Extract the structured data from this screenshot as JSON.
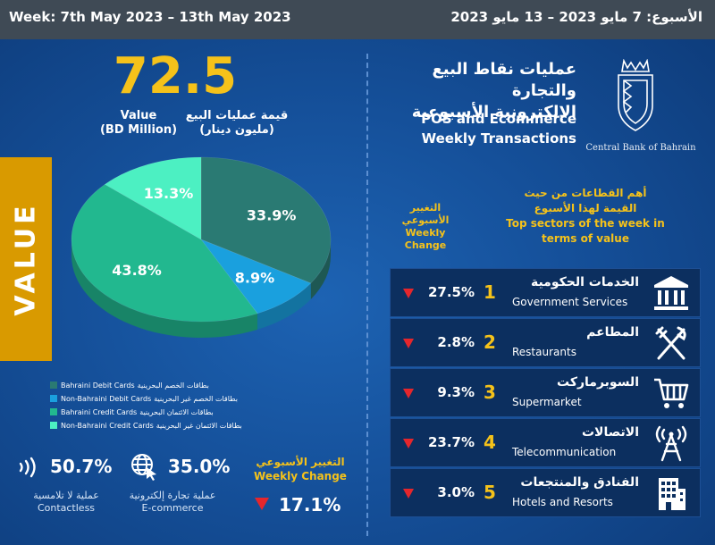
{
  "header": {
    "week_en": "Week: 7th May 2023 – 13th May 2023",
    "week_ar": "الأسبوع: 7 مايو 2023 – 13 مايو 2023"
  },
  "title": {
    "ar_line1": "عمليات نقاط البيع والتجارة",
    "ar_line2": "الإلكترونية الأسبوعية",
    "en_line1": "POS and Ecommerce",
    "en_line2": "Weekly Transactions",
    "logo_text": "Central Bank of Bahrain"
  },
  "value_tab": "VALUE",
  "total": {
    "value": "72.5",
    "label_en_1": "Value",
    "label_en_2": "(BD Million)",
    "label_ar_1": "قيمة عمليات البيع",
    "label_ar_2": "(مليون دينار)"
  },
  "chart_data": {
    "type": "pie",
    "series": [
      {
        "name": "Bahraini Debit Cards",
        "name_ar": "بطاقات الخصم البحرينية",
        "value": 33.9,
        "label": "33.9%",
        "color": "#2a7a73"
      },
      {
        "name": "Non-Bahraini Debit Cards",
        "name_ar": "بطاقات الخصم غير البحرينية",
        "value": 8.9,
        "label": "8.9%",
        "color": "#1aa0de"
      },
      {
        "name": "Bahraini Credit Cards",
        "name_ar": "بطاقات الائتمان البحرينية",
        "value": 43.8,
        "label": "43.8%",
        "color": "#22b88f"
      },
      {
        "name": "Non-Bahraini Credit Cards",
        "name_ar": "بطاقات الائتمان غير البحرينية",
        "value": 13.3,
        "label": "13.3%",
        "color": "#4cf0c2"
      }
    ]
  },
  "kpis": {
    "contactless": {
      "value": "50.7%",
      "caption_ar": "عملية لا تلامسية",
      "caption_en": "Contactless",
      "icon": "contactless-icon"
    },
    "ecommerce": {
      "value": "35.0%",
      "caption_ar": "عملية تجارة إلكترونية",
      "caption_en": "E-commerce",
      "icon": "globe-cursor-icon"
    },
    "weekly_change": {
      "title_ar": "التغيير الأسبوعي",
      "title_en": "Weekly Change",
      "value": "17.1%",
      "direction": "down"
    }
  },
  "sectors": {
    "weekly_change_header": [
      "التغيير",
      "الأسبوعي",
      "Weekly",
      "Change"
    ],
    "top_header": [
      "أهم القطاعات من حيث",
      "القيمة لهذا الأسبوع",
      "Top sectors of the week in",
      "terms of value"
    ],
    "rows": [
      {
        "rank": "1",
        "change": "27.5%",
        "ar": "الخدمات الحكومية",
        "en": "Government Services",
        "icon": "government-building-icon"
      },
      {
        "rank": "2",
        "change": "2.8%",
        "ar": "المطاعم",
        "en": "Restaurants",
        "icon": "fork-knife-icon"
      },
      {
        "rank": "3",
        "change": "9.3%",
        "ar": "السوبرماركت",
        "en": "Supermarket",
        "icon": "shopping-cart-icon"
      },
      {
        "rank": "4",
        "change": "23.7%",
        "ar": "الاتصالات",
        "en": "Telecommunication",
        "icon": "signal-tower-icon"
      },
      {
        "rank": "5",
        "change": "3.0%",
        "ar": "الفنادق والمنتجعات",
        "en": "Hotels and Resorts",
        "icon": "hotel-building-icon"
      }
    ]
  },
  "colors": {
    "accent": "#f5c21a",
    "down_arrow": "#e5262c",
    "value_tab": "#d99a00",
    "topbar": "#3f4a55"
  }
}
